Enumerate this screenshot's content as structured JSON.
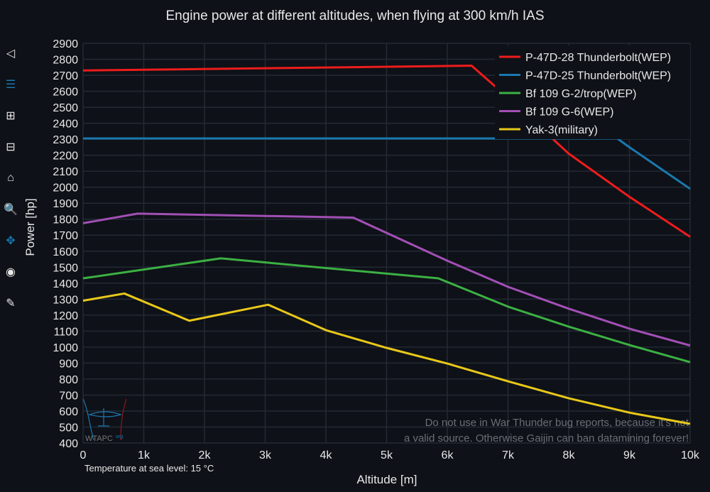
{
  "toolbar": {
    "items": [
      "download-icon",
      "compare-icon",
      "zoom-in-icon",
      "zoom-out-icon",
      "home-icon",
      "zoom-box-icon",
      "pan-icon",
      "camera-icon",
      "edit-icon"
    ]
  },
  "watermark": {
    "logo": "WTAPC",
    "logo_sup": "org",
    "disclaimer_line1": "Do not use in War Thunder bug reports, because it's not",
    "disclaimer_line2": "a valid source. Otherwise Gaijin can ban datamining forever!"
  },
  "note": "Temperature at sea level: 15 °C",
  "chart_data": {
    "type": "line",
    "title": "Engine power at different altitudes, when flying at 300 km/h IAS",
    "xlabel": "Altitude [m]",
    "ylabel": "Power [hp]",
    "xlim": [
      0,
      10000
    ],
    "ylim": [
      400,
      2900
    ],
    "xticks": [
      0,
      1000,
      2000,
      3000,
      4000,
      5000,
      6000,
      7000,
      8000,
      9000,
      10000
    ],
    "xtick_labels": [
      "0",
      "1k",
      "2k",
      "3k",
      "4k",
      "5k",
      "6k",
      "7k",
      "8k",
      "9k",
      "10k"
    ],
    "yticks": [
      400,
      500,
      600,
      700,
      800,
      900,
      1000,
      1100,
      1200,
      1300,
      1400,
      1500,
      1600,
      1700,
      1800,
      1900,
      2000,
      2100,
      2200,
      2300,
      2400,
      2500,
      2600,
      2700,
      2800,
      2900
    ],
    "grid": true,
    "legend_position": "top-right",
    "series": [
      {
        "name": "P-47D-28 Thunderbolt(WEP)",
        "color": "#ee1c1c",
        "x": [
          0,
          6400,
          7000,
          8000,
          9000,
          10000
        ],
        "y": [
          2730,
          2760,
          2560,
          2210,
          1940,
          1690
        ]
      },
      {
        "name": "P-47D-25 Thunderbolt(WEP)",
        "color": "#1a78b0",
        "x": [
          0,
          8800,
          9000,
          10000
        ],
        "y": [
          2305,
          2305,
          2250,
          1990
        ]
      },
      {
        "name": "Bf 109 G-2/trop(WEP)",
        "color": "#3cb043",
        "x": [
          0,
          2270,
          5850,
          7000,
          8000,
          9000,
          10000
        ],
        "y": [
          1430,
          1555,
          1430,
          1253,
          1128,
          1013,
          906
        ]
      },
      {
        "name": "Bf 109 G-6(WEP)",
        "color": "#a24fb5",
        "x": [
          0,
          900,
          4450,
          6000,
          7000,
          8000,
          9000,
          10000
        ],
        "y": [
          1775,
          1835,
          1810,
          1540,
          1377,
          1240,
          1115,
          1010
        ]
      },
      {
        "name": "Yak-3(military)",
        "color": "#e8c81a",
        "x": [
          0,
          680,
          1750,
          3050,
          4000,
          5000,
          6000,
          7000,
          8000,
          9000,
          10000
        ],
        "y": [
          1290,
          1335,
          1165,
          1265,
          1106,
          995,
          897,
          786,
          680,
          590,
          520
        ]
      }
    ]
  }
}
